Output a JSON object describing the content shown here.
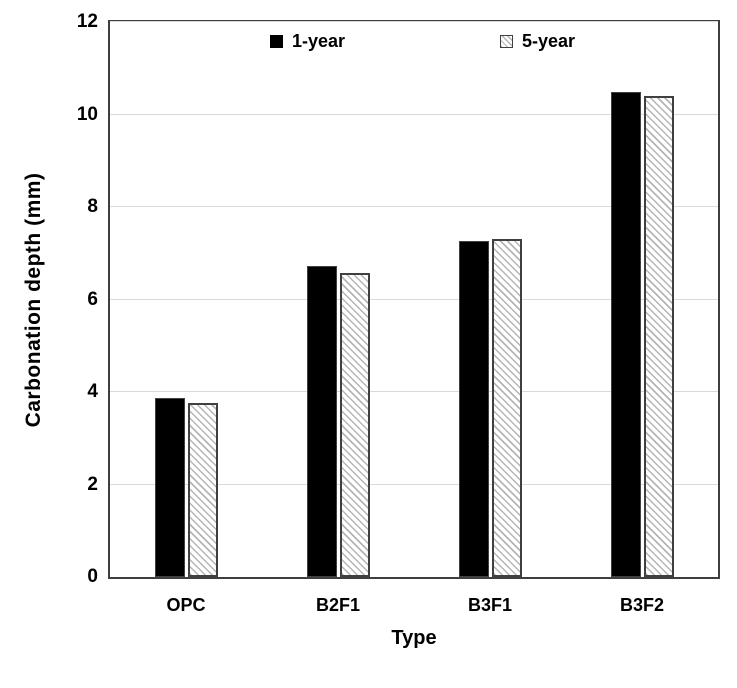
{
  "chart_data": {
    "type": "bar",
    "title": "",
    "xlabel": "Type",
    "ylabel": "Carbonation depth (mm)",
    "categories": [
      "OPC",
      "B2F1",
      "B3F1",
      "B3F2"
    ],
    "series": [
      {
        "name": "1-year",
        "style": "solid",
        "values": [
          3.88,
          6.72,
          7.27,
          10.48
        ]
      },
      {
        "name": "5-year",
        "style": "hatched",
        "values": [
          3.77,
          6.57,
          7.31,
          10.4
        ]
      }
    ],
    "ylim": [
      0,
      12
    ],
    "yticks": [
      0,
      2,
      4,
      6,
      8,
      10,
      12
    ],
    "grid": "horizontal",
    "legend_position": "top-inside",
    "colors": {
      "bar_solid": "#000000",
      "bar_border": "#404040",
      "hatch_line": "#b5b5b5",
      "gridline": "#d9d9d9",
      "plot_border": "#3f3f3f",
      "text": "#000000"
    }
  }
}
